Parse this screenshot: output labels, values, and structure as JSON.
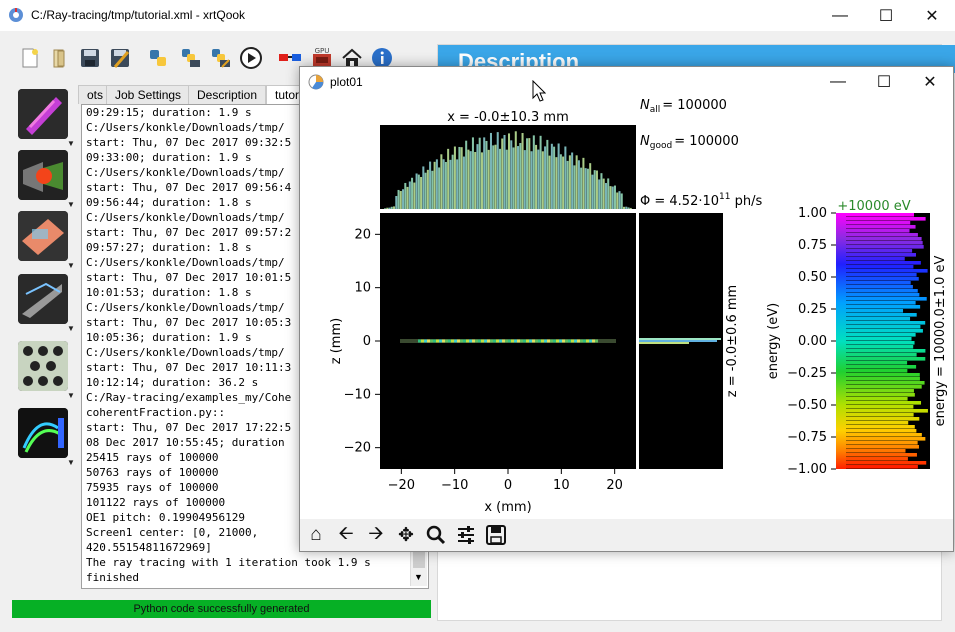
{
  "app": {
    "title": "C:/Ray-tracing/tmp/tutorial.xml - xrtQook"
  },
  "tabs": [
    "ots",
    "Job Settings",
    "Description",
    "tutor"
  ],
  "description": {
    "heading": "Description"
  },
  "log": {
    "lines": [
      "09:29:15; duration: 1.9 s",
      "C:/Users/konkle/Downloads/tmp/",
      "start: Thu, 07 Dec 2017 09:32:5",
      "09:33:00; duration: 1.9 s",
      "C:/Users/konkle/Downloads/tmp/",
      "start: Thu, 07 Dec 2017 09:56:4",
      "09:56:44; duration: 1.8 s",
      "C:/Users/konkle/Downloads/tmp/",
      "start: Thu, 07 Dec 2017 09:57:2",
      "09:57:27; duration: 1.8 s",
      "C:/Users/konkle/Downloads/tmp/",
      "start: Thu, 07 Dec 2017 10:01:5",
      "10:01:53; duration: 1.8 s",
      "C:/Users/konkle/Downloads/tmp/",
      "start: Thu, 07 Dec 2017 10:05:3",
      "10:05:36; duration: 1.9 s",
      "C:/Users/konkle/Downloads/tmp/",
      "start: Thu, 07 Dec 2017 10:11:3",
      "10:12:14; duration: 36.2 s",
      "C:/Ray-tracing/examples_my/Cohe",
      "coherentFraction.py::",
      "start: Thu, 07 Dec 2017 17:22:5",
      "08 Dec 2017 10:55:45; duration",
      "25415 rays of 100000",
      "50763 rays of 100000",
      "75935 rays of 100000",
      "101122 rays of 100000",
      "OE1 pitch: 0.19904956129",
      "Screen1 center: [0, 21000,",
      "420.55154811672969]",
      "The ray tracing with 1 iteration took 1.9 s",
      "finished"
    ]
  },
  "status": {
    "message": "Python code successfully generated"
  },
  "plot_window": {
    "title": "plot01"
  },
  "plot": {
    "top_label": "x = -0.0±10.3 mm",
    "n_all": "= 100000",
    "n_good": "= 100000",
    "flux": "= 4.52·10",
    "flux_exp": "11",
    "flux_unit": " ph/s",
    "side_label": "z = -0.0±0.6 mm",
    "xlabel": "x (mm)",
    "ylabel": "z (mm)",
    "energy_header": "+10000 eV",
    "energy_ylabel": "energy (eV)",
    "energy_side": "energy = 10000.0±1.0 eV",
    "x_ticks": [
      "−20",
      "−10",
      "0",
      "10",
      "20"
    ],
    "z_ticks": [
      "20",
      "10",
      "0",
      "−10",
      "−20"
    ],
    "e_ticks": [
      "1.00",
      "0.75",
      "0.50",
      "0.25",
      "0.00",
      "−0.25",
      "−0.50",
      "−0.75",
      "−1.00"
    ]
  },
  "chart_data": {
    "type": "heatmap",
    "x_range": [
      -24,
      24
    ],
    "z_range": [
      -24,
      24
    ],
    "energy_range": [
      -1.0,
      1.0
    ],
    "x_ticks": [
      -20,
      -10,
      0,
      10,
      20
    ],
    "z_ticks": [
      20,
      10,
      0,
      -10,
      -20
    ],
    "energy_ticks": [
      1.0,
      0.75,
      0.5,
      0.25,
      0.0,
      -0.25,
      -0.5,
      -0.75,
      -1.0
    ]
  },
  "colors": {
    "status": "#06b025",
    "desc_header": "#3aa6e8",
    "energy_header": "#2a8a2a"
  }
}
